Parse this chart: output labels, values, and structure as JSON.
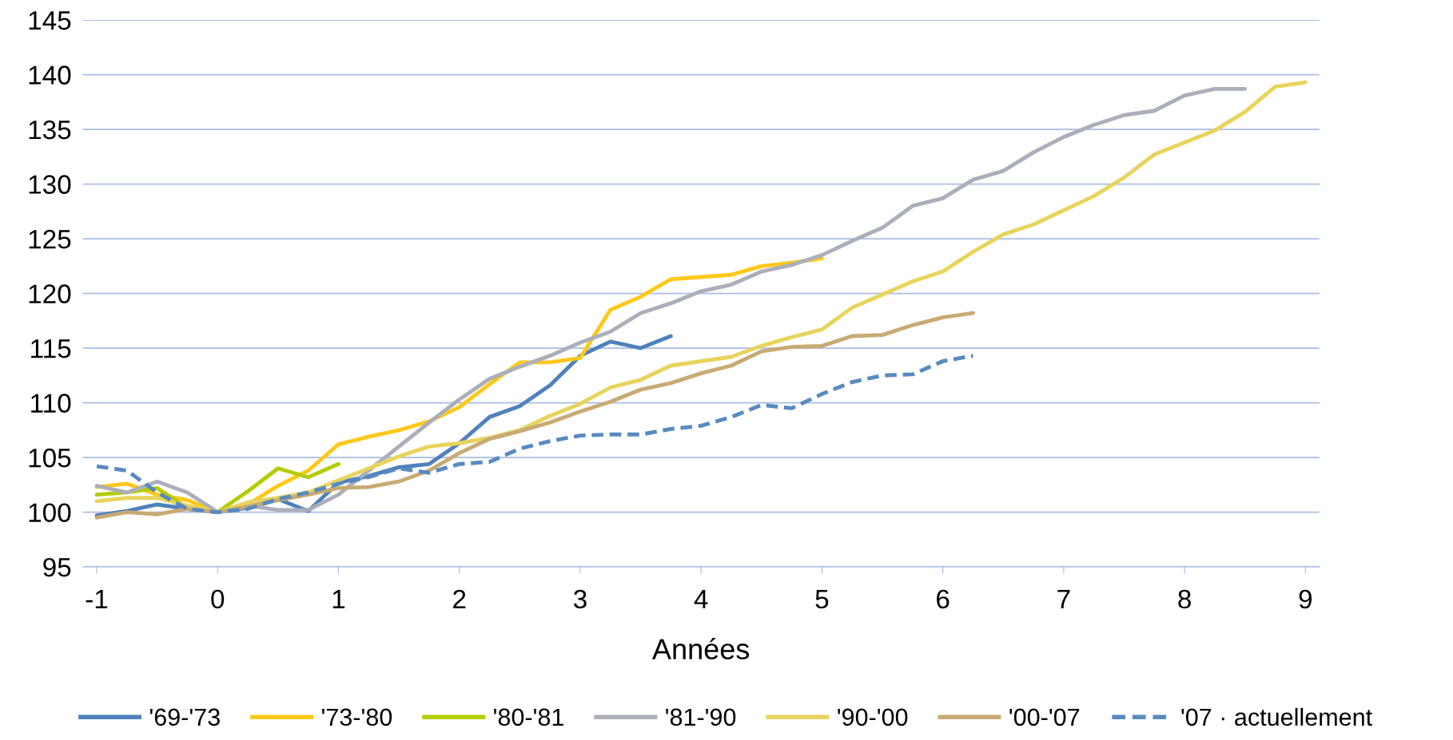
{
  "chart_data": {
    "type": "line",
    "xlabel": "Années",
    "xlim": [
      -1.115,
      9.115
    ],
    "xticks": [
      -1,
      0,
      1,
      2,
      3,
      4,
      5,
      6,
      7,
      8,
      9
    ],
    "ylim": [
      95,
      145
    ],
    "yticks": [
      95,
      100,
      105,
      110,
      115,
      120,
      125,
      130,
      135,
      140,
      145
    ],
    "grid": "y",
    "legend": "bottom",
    "marker": "none",
    "x": [
      -1,
      -0.75,
      -0.5,
      -0.25,
      0,
      0.25,
      0.5,
      0.75,
      1,
      1.25,
      1.5,
      1.75,
      2,
      2.25,
      2.5,
      2.75,
      3,
      3.25,
      3.5,
      3.75,
      4,
      4.25,
      4.5,
      4.75,
      5,
      5.25,
      5.5,
      5.75,
      6,
      6.25,
      6.5,
      6.75,
      7,
      7.25,
      7.5,
      7.75,
      8,
      8.25,
      8.5,
      8.75,
      9
    ],
    "series": [
      {
        "name": "'69-'73",
        "color": "#4f81bd",
        "values": [
          99.7,
          100.1,
          100.7,
          100.3,
          100,
          100.4,
          101.2,
          100.1,
          102.7,
          103.3,
          104.1,
          104.4,
          106.3,
          108.7,
          109.7,
          111.6,
          114.3,
          115.6,
          115.0,
          116.1,
          null,
          null,
          null,
          null,
          null,
          null,
          null,
          null,
          null,
          null,
          null,
          null,
          null,
          null,
          null,
          null,
          null,
          null,
          null,
          null,
          null
        ]
      },
      {
        "name": "'73-'80",
        "color": "#ffc819",
        "values": [
          102.3,
          102.6,
          101.6,
          101.1,
          100,
          100.7,
          102.4,
          103.8,
          106.2,
          106.9,
          107.5,
          108.3,
          109.6,
          111.7,
          113.7,
          113.7,
          114.1,
          118.5,
          119.7,
          121.3,
          121.5,
          121.7,
          122.5,
          122.8,
          123.2,
          null,
          null,
          null,
          null,
          null,
          null,
          null,
          null,
          null,
          null,
          null,
          null,
          null,
          null,
          null,
          null
        ]
      },
      {
        "name": "'80-'81",
        "color": "#b5cc00",
        "values": [
          101.6,
          101.8,
          102.2,
          100.4,
          100,
          101.9,
          104.0,
          103.2,
          104.4,
          null,
          null,
          null,
          null,
          null,
          null,
          null,
          null,
          null,
          null,
          null,
          null,
          null,
          null,
          null,
          null,
          null,
          null,
          null,
          null,
          null,
          null,
          null,
          null,
          null,
          null,
          null,
          null,
          null,
          null,
          null,
          null
        ]
      },
      {
        "name": "'81-'90",
        "color": "#abafba",
        "values": [
          102.4,
          101.8,
          102.8,
          101.8,
          100,
          100.6,
          100.2,
          100.2,
          101.6,
          103.8,
          106.0,
          108.2,
          110.3,
          112.2,
          113.3,
          114.3,
          115.5,
          116.5,
          118.2,
          119.1,
          120.2,
          120.8,
          122.0,
          122.6,
          123.5,
          124.8,
          126.0,
          128.0,
          128.7,
          130.4,
          131.2,
          132.9,
          134.3,
          135.4,
          136.3,
          136.7,
          138.1,
          138.7,
          138.7,
          null,
          null
        ]
      },
      {
        "name": "'90-'00",
        "color": "#e8d45c",
        "values": [
          101.0,
          101.3,
          101.3,
          100.6,
          100,
          100.9,
          101.3,
          101.8,
          102.9,
          104.0,
          105.1,
          106.0,
          106.3,
          106.8,
          107.5,
          108.8,
          109.9,
          111.4,
          112.1,
          113.4,
          113.8,
          114.2,
          115.2,
          116.0,
          116.7,
          118.7,
          119.9,
          121.1,
          122.0,
          123.8,
          125.4,
          126.3,
          127.6,
          128.9,
          130.6,
          132.7,
          133.8,
          134.9,
          136.6,
          138.9,
          139.3
        ]
      },
      {
        "name": "'00-'07",
        "color": "#c8aa74",
        "values": [
          99.5,
          100.0,
          99.8,
          100.3,
          100,
          100.5,
          101.1,
          101.6,
          102.2,
          102.3,
          102.8,
          103.8,
          105.4,
          106.7,
          107.4,
          108.2,
          109.2,
          110.1,
          111.2,
          111.8,
          112.7,
          113.4,
          114.7,
          115.1,
          115.2,
          116.1,
          116.2,
          117.1,
          117.8,
          118.2,
          null,
          null,
          null,
          null,
          null,
          null,
          null,
          null,
          null,
          null,
          null
        ]
      },
      {
        "name": "'07 · actuellement",
        "color": "#588ac0",
        "line_style": "dashed",
        "values": [
          104.2,
          103.8,
          101.8,
          100.3,
          100,
          100.3,
          101.2,
          101.8,
          102.6,
          103.2,
          104.0,
          103.6,
          104.4,
          104.6,
          105.8,
          106.5,
          107.0,
          107.1,
          107.1,
          107.6,
          107.9,
          108.7,
          109.8,
          109.5,
          110.8,
          111.9,
          112.5,
          112.6,
          113.8,
          114.3,
          null,
          null,
          null,
          null,
          null,
          null,
          null,
          null,
          null,
          null,
          null
        ]
      }
    ]
  }
}
